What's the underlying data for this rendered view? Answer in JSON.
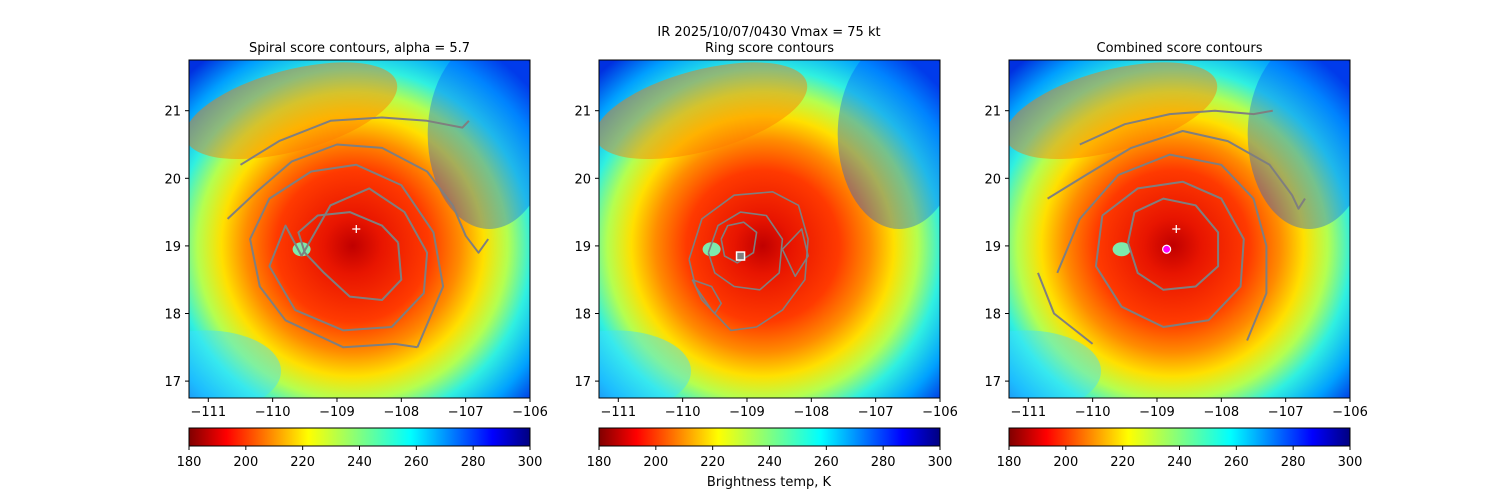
{
  "suptitle": "IR  2025/10/07/0430    Vmax = 75 kt",
  "colorbar_label": "Brightness temp, K",
  "colorbar_ticks": [
    180,
    200,
    220,
    240,
    260,
    280,
    300
  ],
  "colorbar_range": [
    180,
    300
  ],
  "colors": {
    "contour": "#7f7f7f",
    "storm_core": "#e52a00",
    "background_cold": "#1e90ff"
  },
  "chart_data": [
    {
      "type": "heatmap",
      "title": "Spiral score contours, alpha =  5.7",
      "xlim": [
        -111.3,
        -106
      ],
      "ylim": [
        16.75,
        21.75
      ],
      "xticks": [
        -111,
        -110,
        -109,
        -108,
        -107,
        -106
      ],
      "yticks": [
        17,
        18,
        19,
        20,
        21
      ],
      "markers": [
        {
          "kind": "plus",
          "lon": -108.7,
          "lat": 19.25
        }
      ],
      "contours": [
        [
          [
            -108.05,
            19.05
          ],
          [
            -108.3,
            19.3
          ],
          [
            -108.8,
            19.5
          ],
          [
            -109.3,
            19.45
          ],
          [
            -109.6,
            19.2
          ],
          [
            -109.5,
            18.9
          ],
          [
            -109.2,
            18.6
          ],
          [
            -108.8,
            18.25
          ],
          [
            -108.3,
            18.2
          ],
          [
            -108.0,
            18.5
          ],
          [
            -108.05,
            19.05
          ]
        ],
        [
          [
            -109.55,
            18.85
          ],
          [
            -109.1,
            19.6
          ],
          [
            -108.5,
            19.85
          ],
          [
            -107.95,
            19.5
          ],
          [
            -107.6,
            18.9
          ],
          [
            -107.65,
            18.3
          ],
          [
            -108.15,
            17.8
          ],
          [
            -108.9,
            17.75
          ],
          [
            -109.65,
            18.05
          ],
          [
            -110.05,
            18.7
          ],
          [
            -109.8,
            19.3
          ],
          [
            -109.55,
            18.85
          ]
        ],
        [
          [
            -107.75,
            17.5
          ],
          [
            -107.35,
            18.4
          ],
          [
            -107.5,
            19.2
          ],
          [
            -108.0,
            19.9
          ],
          [
            -108.7,
            20.2
          ],
          [
            -109.4,
            20.1
          ],
          [
            -110.05,
            19.7
          ],
          [
            -110.35,
            19.1
          ],
          [
            -110.2,
            18.4
          ],
          [
            -109.8,
            17.9
          ],
          [
            -108.9,
            17.5
          ],
          [
            -108.1,
            17.55
          ],
          [
            -107.75,
            17.5
          ]
        ],
        [
          [
            -110.7,
            19.4
          ],
          [
            -110.25,
            19.8
          ],
          [
            -109.7,
            20.25
          ],
          [
            -109.0,
            20.5
          ],
          [
            -108.3,
            20.45
          ],
          [
            -107.6,
            20.1
          ],
          [
            -107.2,
            19.6
          ],
          [
            -107.0,
            19.15
          ],
          [
            -106.8,
            18.9
          ],
          [
            -106.65,
            19.1
          ]
        ],
        [
          [
            -110.5,
            20.2
          ],
          [
            -109.9,
            20.55
          ],
          [
            -109.1,
            20.85
          ],
          [
            -108.3,
            20.9
          ],
          [
            -107.6,
            20.85
          ],
          [
            -107.05,
            20.75
          ],
          [
            -106.95,
            20.85
          ]
        ]
      ]
    },
    {
      "type": "heatmap",
      "title": "Ring score contours",
      "xlim": [
        -111.3,
        -106
      ],
      "ylim": [
        16.75,
        21.75
      ],
      "xticks": [
        -111,
        -110,
        -109,
        -108,
        -107,
        -106
      ],
      "yticks": [
        17,
        18,
        19,
        20,
        21
      ],
      "markers": [
        {
          "kind": "square",
          "lon": -109.1,
          "lat": 18.85
        }
      ],
      "contours": [
        [
          [
            -109.9,
            18.8
          ],
          [
            -109.7,
            19.4
          ],
          [
            -109.2,
            19.75
          ],
          [
            -108.6,
            19.8
          ],
          [
            -108.2,
            19.6
          ],
          [
            -108.05,
            19.1
          ],
          [
            -108.1,
            18.5
          ],
          [
            -108.45,
            18.05
          ],
          [
            -108.85,
            17.8
          ],
          [
            -109.25,
            17.75
          ],
          [
            -109.55,
            18.05
          ],
          [
            -109.8,
            18.4
          ],
          [
            -109.9,
            18.8
          ]
        ],
        [
          [
            -109.6,
            18.9
          ],
          [
            -109.45,
            19.3
          ],
          [
            -109.1,
            19.5
          ],
          [
            -108.7,
            19.45
          ],
          [
            -108.45,
            19.1
          ],
          [
            -108.5,
            18.6
          ],
          [
            -108.8,
            18.35
          ],
          [
            -109.2,
            18.4
          ],
          [
            -109.5,
            18.6
          ],
          [
            -109.6,
            18.9
          ]
        ],
        [
          [
            -109.4,
            19.1
          ],
          [
            -109.3,
            19.3
          ],
          [
            -109.05,
            19.35
          ],
          [
            -108.85,
            19.2
          ],
          [
            -108.9,
            18.9
          ],
          [
            -109.15,
            18.75
          ],
          [
            -109.35,
            18.85
          ],
          [
            -109.4,
            19.1
          ]
        ],
        [
          [
            -109.85,
            18.5
          ],
          [
            -109.7,
            18.2
          ],
          [
            -109.5,
            18.0
          ],
          [
            -109.4,
            18.15
          ],
          [
            -109.55,
            18.4
          ],
          [
            -109.85,
            18.5
          ]
        ],
        [
          [
            -108.45,
            18.95
          ],
          [
            -108.15,
            19.25
          ],
          [
            -108.05,
            18.85
          ],
          [
            -108.25,
            18.55
          ],
          [
            -108.45,
            18.95
          ]
        ]
      ]
    },
    {
      "type": "heatmap",
      "title": "Combined score contours",
      "xlim": [
        -111.3,
        -106
      ],
      "ylim": [
        16.75,
        21.75
      ],
      "xticks": [
        -111,
        -110,
        -109,
        -108,
        -107,
        -106
      ],
      "yticks": [
        17,
        18,
        19,
        20,
        21
      ],
      "markers": [
        {
          "kind": "plus",
          "lon": -108.7,
          "lat": 19.25
        },
        {
          "kind": "circle",
          "lon": -108.85,
          "lat": 18.95
        }
      ],
      "contours": [
        [
          [
            -109.35,
            19.5
          ],
          [
            -108.9,
            19.7
          ],
          [
            -108.4,
            19.6
          ],
          [
            -108.05,
            19.2
          ],
          [
            -108.05,
            18.7
          ],
          [
            -108.4,
            18.4
          ],
          [
            -108.9,
            18.35
          ],
          [
            -109.3,
            18.6
          ],
          [
            -109.45,
            19.05
          ],
          [
            -109.35,
            19.5
          ]
        ],
        [
          [
            -109.85,
            19.45
          ],
          [
            -109.3,
            19.85
          ],
          [
            -108.6,
            19.95
          ],
          [
            -108.0,
            19.7
          ],
          [
            -107.65,
            19.1
          ],
          [
            -107.7,
            18.4
          ],
          [
            -108.2,
            17.9
          ],
          [
            -108.9,
            17.8
          ],
          [
            -109.55,
            18.1
          ],
          [
            -109.95,
            18.7
          ],
          [
            -109.85,
            19.45
          ]
        ],
        [
          [
            -110.55,
            18.6
          ],
          [
            -110.2,
            19.4
          ],
          [
            -109.6,
            20.05
          ],
          [
            -108.8,
            20.35
          ],
          [
            -108.0,
            20.2
          ],
          [
            -107.5,
            19.7
          ],
          [
            -107.3,
            19.0
          ],
          [
            -107.3,
            18.3
          ],
          [
            -107.6,
            17.6
          ]
        ],
        [
          [
            -110.7,
            19.7
          ],
          [
            -110.1,
            20.05
          ],
          [
            -109.4,
            20.45
          ],
          [
            -108.6,
            20.7
          ],
          [
            -107.9,
            20.55
          ],
          [
            -107.25,
            20.2
          ],
          [
            -106.9,
            19.75
          ],
          [
            -106.8,
            19.55
          ],
          [
            -106.7,
            19.7
          ]
        ],
        [
          [
            -110.2,
            20.5
          ],
          [
            -109.5,
            20.8
          ],
          [
            -108.8,
            20.95
          ],
          [
            -108.1,
            21.0
          ],
          [
            -107.5,
            20.95
          ],
          [
            -107.2,
            21.0
          ]
        ],
        [
          [
            -110.0,
            17.55
          ],
          [
            -110.6,
            18.0
          ],
          [
            -110.85,
            18.6
          ]
        ]
      ]
    }
  ]
}
